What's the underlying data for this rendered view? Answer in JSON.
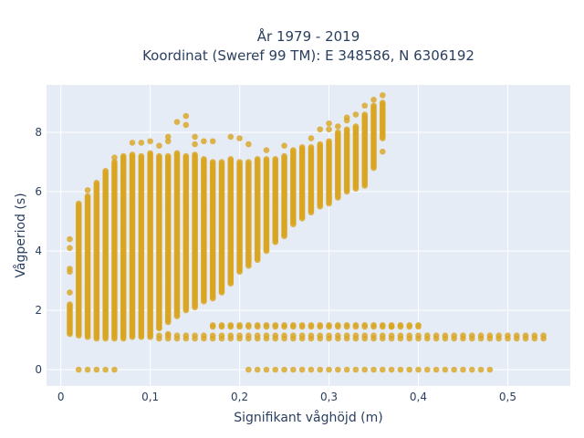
{
  "chart_data": {
    "type": "scatter",
    "title_lines": [
      "År 1979 - 2019",
      "Koordinat (Sweref 99 TM): E 348586, N 6306192"
    ],
    "xlabel": "Signifikant våghöjd (m)",
    "ylabel": "Vågperiod (s)",
    "xlim": [
      -0.016,
      0.57
    ],
    "ylim": [
      -0.55,
      9.6
    ],
    "x_ticks": [
      0,
      0.1,
      0.2,
      0.3,
      0.4,
      0.5
    ],
    "x_tick_labels": [
      "0",
      "0,1",
      "0,2",
      "0,3",
      "0,4",
      "0,5"
    ],
    "y_ticks": [
      0,
      2,
      4,
      6,
      8
    ],
    "y_tick_labels": [
      "0",
      "2",
      "4",
      "6",
      "8"
    ],
    "grid": true,
    "legend": "none",
    "colors": {
      "marker": "#DAA520",
      "plot_bg": "#E5ECF6",
      "grid": "#ffffff",
      "text": "#2a3f5f"
    },
    "marker_opacity": 0.8,
    "bin_width_x": 0.01,
    "bin_step_y": 0.05,
    "columns": [
      {
        "x": 0.01,
        "ymin": 1.2,
        "ymax": 2.2,
        "extras": [
          2.6,
          3.3,
          3.4,
          4.1,
          4.4
        ]
      },
      {
        "x": 0.02,
        "ymin": 1.15,
        "ymax": 5.6,
        "extras": []
      },
      {
        "x": 0.03,
        "ymin": 1.1,
        "ymax": 5.85,
        "extras": [
          6.05
        ]
      },
      {
        "x": 0.04,
        "ymin": 1.05,
        "ymax": 6.3,
        "extras": []
      },
      {
        "x": 0.05,
        "ymin": 1.05,
        "ymax": 6.7,
        "extras": []
      },
      {
        "x": 0.06,
        "ymin": 1.05,
        "ymax": 7.0,
        "extras": [
          7.15
        ]
      },
      {
        "x": 0.07,
        "ymin": 1.05,
        "ymax": 7.2,
        "extras": []
      },
      {
        "x": 0.08,
        "ymin": 1.1,
        "ymax": 7.25,
        "extras": [
          7.65
        ]
      },
      {
        "x": 0.09,
        "ymin": 1.1,
        "ymax": 7.2,
        "extras": [
          7.65
        ]
      },
      {
        "x": 0.1,
        "ymin": 1.1,
        "ymax": 7.3,
        "extras": [
          7.7
        ]
      },
      {
        "x": 0.11,
        "ymin": 1.4,
        "ymax": 7.2,
        "extras": [
          7.55
        ]
      },
      {
        "x": 0.12,
        "ymin": 1.6,
        "ymax": 7.2,
        "extras": [
          7.7,
          7.85
        ]
      },
      {
        "x": 0.13,
        "ymin": 1.8,
        "ymax": 7.3,
        "extras": [
          8.35
        ]
      },
      {
        "x": 0.14,
        "ymin": 2.0,
        "ymax": 7.2,
        "extras": [
          8.25,
          8.55
        ]
      },
      {
        "x": 0.15,
        "ymin": 2.1,
        "ymax": 7.25,
        "extras": [
          7.6,
          7.85
        ]
      },
      {
        "x": 0.16,
        "ymin": 2.3,
        "ymax": 7.1,
        "extras": [
          7.7
        ]
      },
      {
        "x": 0.17,
        "ymin": 2.4,
        "ymax": 7.0,
        "extras": [
          7.7
        ]
      },
      {
        "x": 0.18,
        "ymin": 2.6,
        "ymax": 7.0,
        "extras": []
      },
      {
        "x": 0.19,
        "ymin": 2.9,
        "ymax": 7.1,
        "extras": [
          7.85
        ]
      },
      {
        "x": 0.2,
        "ymin": 3.3,
        "ymax": 7.0,
        "extras": [
          7.8
        ]
      },
      {
        "x": 0.21,
        "ymin": 3.5,
        "ymax": 7.0,
        "extras": [
          7.6
        ]
      },
      {
        "x": 0.22,
        "ymin": 3.7,
        "ymax": 7.1,
        "extras": []
      },
      {
        "x": 0.23,
        "ymin": 4.0,
        "ymax": 7.1,
        "extras": [
          7.4
        ]
      },
      {
        "x": 0.24,
        "ymin": 4.3,
        "ymax": 7.1,
        "extras": []
      },
      {
        "x": 0.25,
        "ymin": 4.5,
        "ymax": 7.2,
        "extras": [
          7.55
        ]
      },
      {
        "x": 0.26,
        "ymin": 4.9,
        "ymax": 7.4,
        "extras": [
          7.1
        ]
      },
      {
        "x": 0.27,
        "ymin": 5.1,
        "ymax": 7.5,
        "extras": []
      },
      {
        "x": 0.28,
        "ymin": 5.3,
        "ymax": 7.5,
        "extras": [
          7.8
        ]
      },
      {
        "x": 0.29,
        "ymin": 5.5,
        "ymax": 7.6,
        "extras": [
          8.1
        ]
      },
      {
        "x": 0.3,
        "ymin": 5.6,
        "ymax": 7.7,
        "extras": [
          8.1,
          8.3
        ]
      },
      {
        "x": 0.31,
        "ymin": 5.8,
        "ymax": 8.0,
        "extras": [
          8.2
        ]
      },
      {
        "x": 0.32,
        "ymin": 6.0,
        "ymax": 8.1,
        "extras": [
          8.4,
          8.5
        ]
      },
      {
        "x": 0.33,
        "ymin": 6.1,
        "ymax": 8.2,
        "extras": [
          8.6
        ]
      },
      {
        "x": 0.34,
        "ymin": 6.2,
        "ymax": 8.6,
        "extras": [
          8.9
        ]
      },
      {
        "x": 0.35,
        "ymin": 6.8,
        "ymax": 8.9,
        "extras": [
          9.1
        ]
      },
      {
        "x": 0.36,
        "ymin": 7.8,
        "ymax": 9.0,
        "extras": [
          7.35,
          9.25
        ]
      }
    ],
    "bands": [
      {
        "xmin": 0.11,
        "xmax": 0.54,
        "y": 1.05,
        "y2": 1.15
      },
      {
        "xmin": 0.17,
        "xmax": 0.4,
        "y": 1.45,
        "y2": 1.5
      },
      {
        "xmin": 0.02,
        "xmax": 0.06,
        "y": 0.0,
        "y2": 0.0
      },
      {
        "xmin": 0.21,
        "xmax": 0.48,
        "y": 0.0,
        "y2": 0.0
      }
    ],
    "extra_points": [
      {
        "x": 0.11,
        "y": 1.4
      },
      {
        "x": 0.12,
        "y": 1.2
      },
      {
        "x": 0.37,
        "y": 1.45
      }
    ]
  }
}
